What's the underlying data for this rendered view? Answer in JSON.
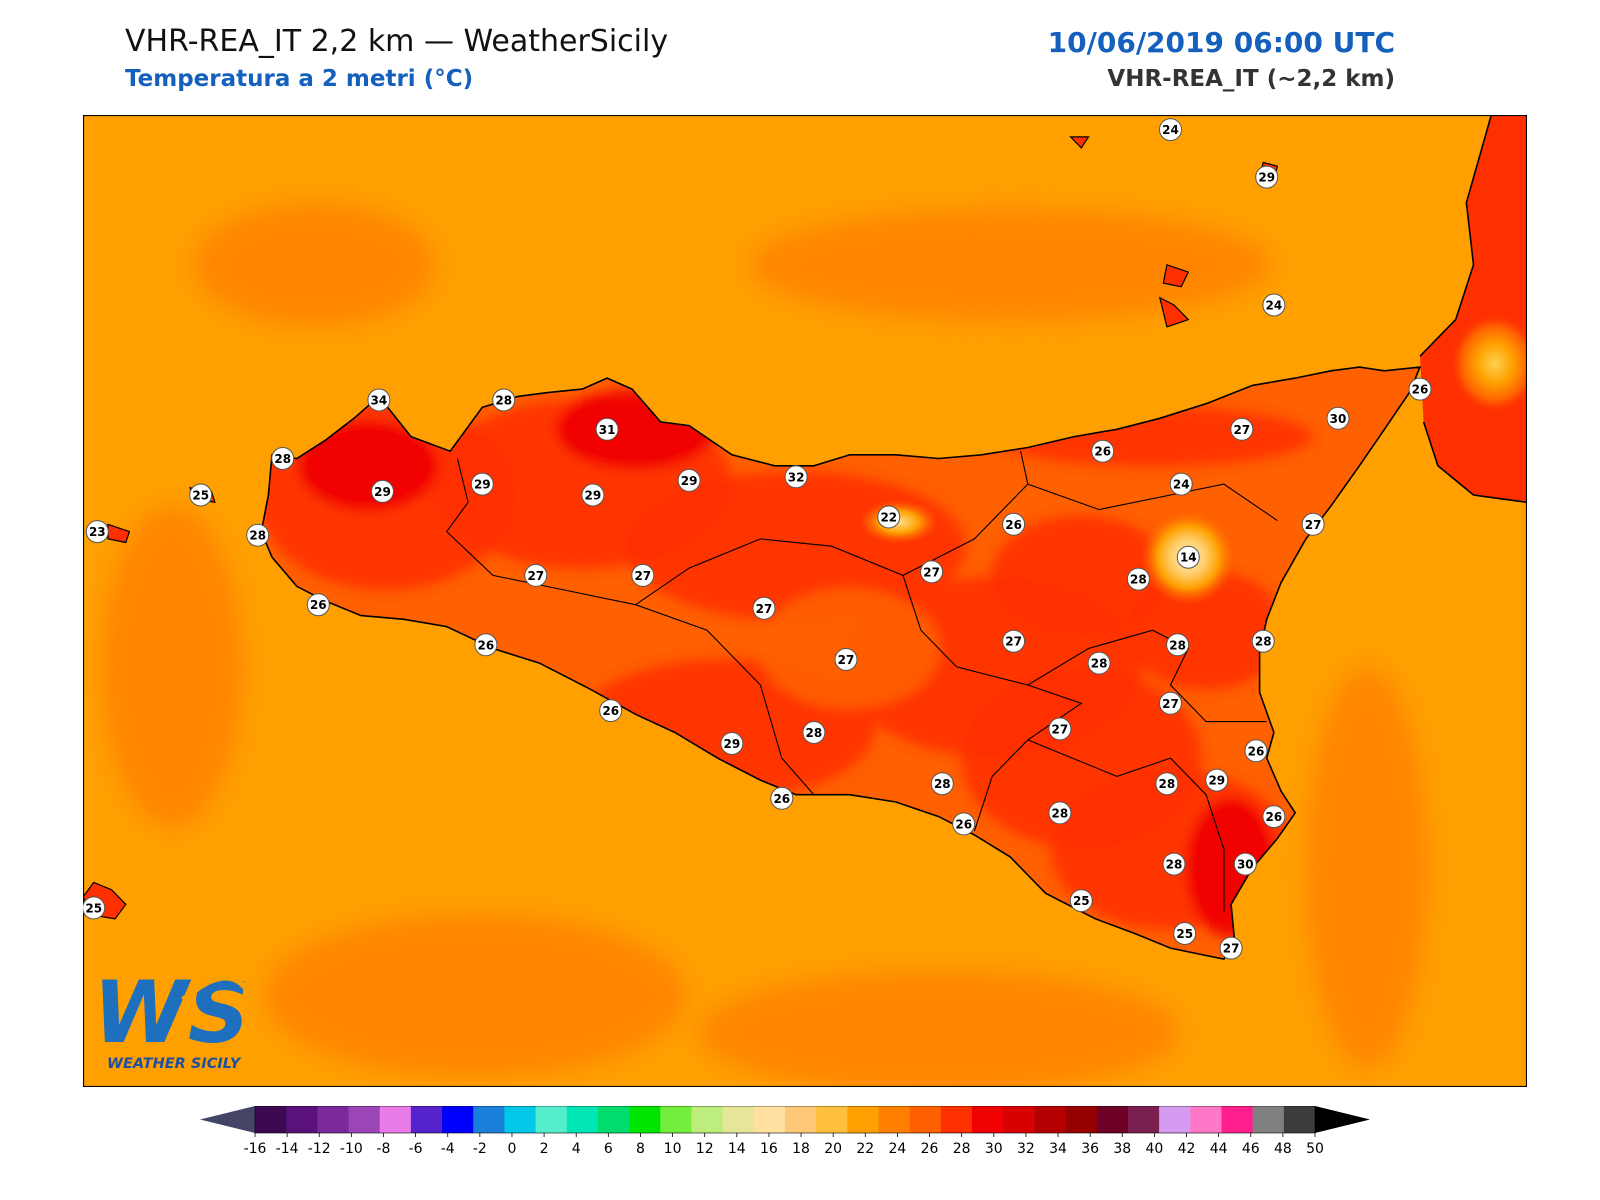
{
  "header": {
    "title": "VHR-REA_IT 2,2 km — WeatherSicily",
    "subtitle": "Temperatura a 2 metri (°C)",
    "datetime": "10/06/2019 06:00 UTC",
    "model": "VHR-REA_IT (~2,2 km)"
  },
  "logo": {
    "letters": "WS",
    "text": "WEATHER SICILY"
  },
  "colors": {
    "sea": "#ffa000",
    "sea_warm": "#ff8000",
    "land_26": "#ff6000",
    "land_28": "#ff3000",
    "land_30": "#f00000",
    "land_32": "#d80000",
    "cool_22": "#ffc030",
    "cool_18": "#ffe0a0",
    "coast": "#000000"
  },
  "stations": [
    {
      "label": "24",
      "lon": 14.95,
      "lat": 38.92
    },
    {
      "label": "29",
      "lon": 15.22,
      "lat": 38.79
    },
    {
      "label": "24",
      "lon": 15.24,
      "lat": 38.44
    },
    {
      "label": "26",
      "lon": 15.65,
      "lat": 38.21
    },
    {
      "label": "30",
      "lon": 15.42,
      "lat": 38.13
    },
    {
      "label": "27",
      "lon": 15.15,
      "lat": 38.1
    },
    {
      "label": "26",
      "lon": 14.76,
      "lat": 38.04
    },
    {
      "label": "24",
      "lon": 14.98,
      "lat": 37.95
    },
    {
      "label": "27",
      "lon": 15.35,
      "lat": 37.84
    },
    {
      "label": "14",
      "lon": 15.0,
      "lat": 37.75
    },
    {
      "label": "34",
      "lon": 12.73,
      "lat": 38.18
    },
    {
      "label": "28",
      "lon": 13.08,
      "lat": 38.18
    },
    {
      "label": "31",
      "lon": 13.37,
      "lat": 38.1
    },
    {
      "label": "28",
      "lon": 12.46,
      "lat": 38.02
    },
    {
      "label": "23",
      "lon": 11.94,
      "lat": 37.82
    },
    {
      "label": "25",
      "lon": 12.23,
      "lat": 37.92
    },
    {
      "label": "29",
      "lon": 12.74,
      "lat": 37.93
    },
    {
      "label": "29",
      "lon": 13.02,
      "lat": 37.95
    },
    {
      "label": "29",
      "lon": 13.33,
      "lat": 37.92
    },
    {
      "label": "29",
      "lon": 13.6,
      "lat": 37.96
    },
    {
      "label": "32",
      "lon": 13.9,
      "lat": 37.97
    },
    {
      "label": "22",
      "lon": 14.16,
      "lat": 37.86
    },
    {
      "label": "26",
      "lon": 14.51,
      "lat": 37.84
    },
    {
      "label": "28",
      "lon": 12.39,
      "lat": 37.81
    },
    {
      "label": "27",
      "lon": 13.17,
      "lat": 37.7
    },
    {
      "label": "27",
      "lon": 13.47,
      "lat": 37.7
    },
    {
      "label": "27",
      "lon": 14.28,
      "lat": 37.71
    },
    {
      "label": "28",
      "lon": 14.86,
      "lat": 37.69
    },
    {
      "label": "26",
      "lon": 12.56,
      "lat": 37.62
    },
    {
      "label": "27",
      "lon": 13.81,
      "lat": 37.61
    },
    {
      "label": "27",
      "lon": 14.51,
      "lat": 37.52
    },
    {
      "label": "26",
      "lon": 13.03,
      "lat": 37.51
    },
    {
      "label": "27",
      "lon": 14.04,
      "lat": 37.47
    },
    {
      "label": "28",
      "lon": 14.75,
      "lat": 37.46
    },
    {
      "label": "28",
      "lon": 14.97,
      "lat": 37.51
    },
    {
      "label": "28",
      "lon": 15.21,
      "lat": 37.52
    },
    {
      "label": "26",
      "lon": 13.38,
      "lat": 37.33
    },
    {
      "label": "27",
      "lon": 14.95,
      "lat": 37.35
    },
    {
      "label": "29",
      "lon": 13.72,
      "lat": 37.24
    },
    {
      "label": "28",
      "lon": 13.95,
      "lat": 37.27
    },
    {
      "label": "27",
      "lon": 14.64,
      "lat": 37.28
    },
    {
      "label": "26",
      "lon": 15.19,
      "lat": 37.22
    },
    {
      "label": "28",
      "lon": 14.31,
      "lat": 37.13
    },
    {
      "label": "29",
      "lon": 15.08,
      "lat": 37.14
    },
    {
      "label": "28",
      "lon": 14.94,
      "lat": 37.13
    },
    {
      "label": "26",
      "lon": 13.86,
      "lat": 37.09
    },
    {
      "label": "26",
      "lon": 14.37,
      "lat": 37.02
    },
    {
      "label": "28",
      "lon": 14.64,
      "lat": 37.05
    },
    {
      "label": "26",
      "lon": 15.24,
      "lat": 37.04
    },
    {
      "label": "28",
      "lon": 14.96,
      "lat": 36.91
    },
    {
      "label": "30",
      "lon": 15.16,
      "lat": 36.91
    },
    {
      "label": "25",
      "lon": 14.7,
      "lat": 36.81
    },
    {
      "label": "25",
      "lon": 14.99,
      "lat": 36.72
    },
    {
      "label": "27",
      "lon": 15.12,
      "lat": 36.68
    },
    {
      "label": "25",
      "lon": 11.93,
      "lat": 36.79
    }
  ],
  "colorbar": {
    "ticks": [
      "-16",
      "-14",
      "-12",
      "-10",
      "-8",
      "-6",
      "-4",
      "-2",
      "0",
      "2",
      "4",
      "6",
      "8",
      "10",
      "12",
      "14",
      "16",
      "18",
      "20",
      "22",
      "24",
      "26",
      "28",
      "30",
      "32",
      "34",
      "36",
      "38",
      "40",
      "42",
      "44",
      "46",
      "48",
      "50"
    ],
    "colors": [
      "#3d0a52",
      "#5a117a",
      "#7a2a9a",
      "#9b45b6",
      "#e87be8",
      "#5522cc",
      "#0000ff",
      "#1a7fd9",
      "#00c8e6",
      "#55eecc",
      "#00e6b4",
      "#00dc6e",
      "#00e600",
      "#73ee3c",
      "#bdee7d",
      "#e6e69b",
      "#ffe0a0",
      "#ffc878",
      "#ffc03c",
      "#ffa000",
      "#ff8000",
      "#ff6000",
      "#ff3000",
      "#f00000",
      "#d80000",
      "#b40000",
      "#960000",
      "#6e0028",
      "#7a2050",
      "#d49bf0",
      "#ff78c8",
      "#ff1e8c",
      "#808080",
      "#3c3c3c"
    ],
    "under_color": "#444466",
    "over_color": "#000000"
  }
}
